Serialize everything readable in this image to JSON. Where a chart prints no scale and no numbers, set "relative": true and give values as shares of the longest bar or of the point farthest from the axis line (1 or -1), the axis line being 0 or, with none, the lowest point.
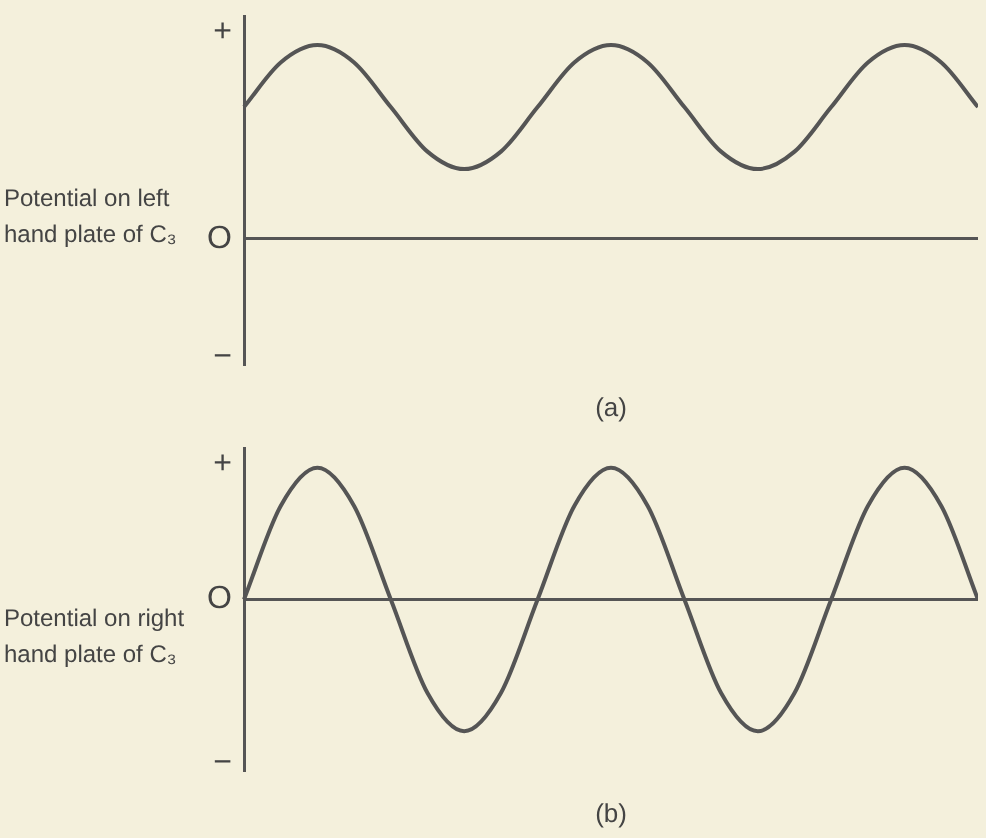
{
  "chart_data": [
    {
      "type": "line",
      "title": "(a)",
      "ylabel": "Potential on left hand plate of C₃",
      "relative": true,
      "annotations": [
        "+",
        "O",
        "−"
      ],
      "categories": [
        null,
        null,
        null,
        null,
        null,
        null,
        null,
        null,
        null,
        null,
        null,
        null,
        null,
        null,
        null,
        null,
        null,
        null,
        null,
        null,
        null
      ],
      "series": [
        {
          "color": "#555555",
          "values": [
            0.68,
            0.91,
            1,
            0.91,
            0.68,
            0.45,
            0.36,
            0.45,
            0.68,
            0.91,
            1,
            0.91,
            0.68,
            0.45,
            0.36,
            0.45,
            0.68,
            0.91,
            1,
            0.91,
            0.68
          ]
        }
      ],
      "grid": false,
      "legend": false,
      "marker": "none"
    },
    {
      "type": "line",
      "title": "(b)",
      "ylabel": "Potential on right hand plate of C₃",
      "relative": true,
      "annotations": [
        "+",
        "O",
        "−"
      ],
      "categories": [
        null,
        null,
        null,
        null,
        null,
        null,
        null,
        null,
        null,
        null,
        null,
        null,
        null,
        null,
        null,
        null,
        null,
        null,
        null,
        null,
        null
      ],
      "series": [
        {
          "color": "#555555",
          "values": [
            0,
            0.71,
            1,
            0.71,
            0,
            -0.71,
            -1,
            -0.71,
            0,
            0.71,
            1,
            0.71,
            0,
            -0.71,
            -1,
            -0.71,
            0,
            0.71,
            1,
            0.71,
            0
          ]
        }
      ],
      "grid": false,
      "legend": false,
      "marker": "none"
    }
  ]
}
